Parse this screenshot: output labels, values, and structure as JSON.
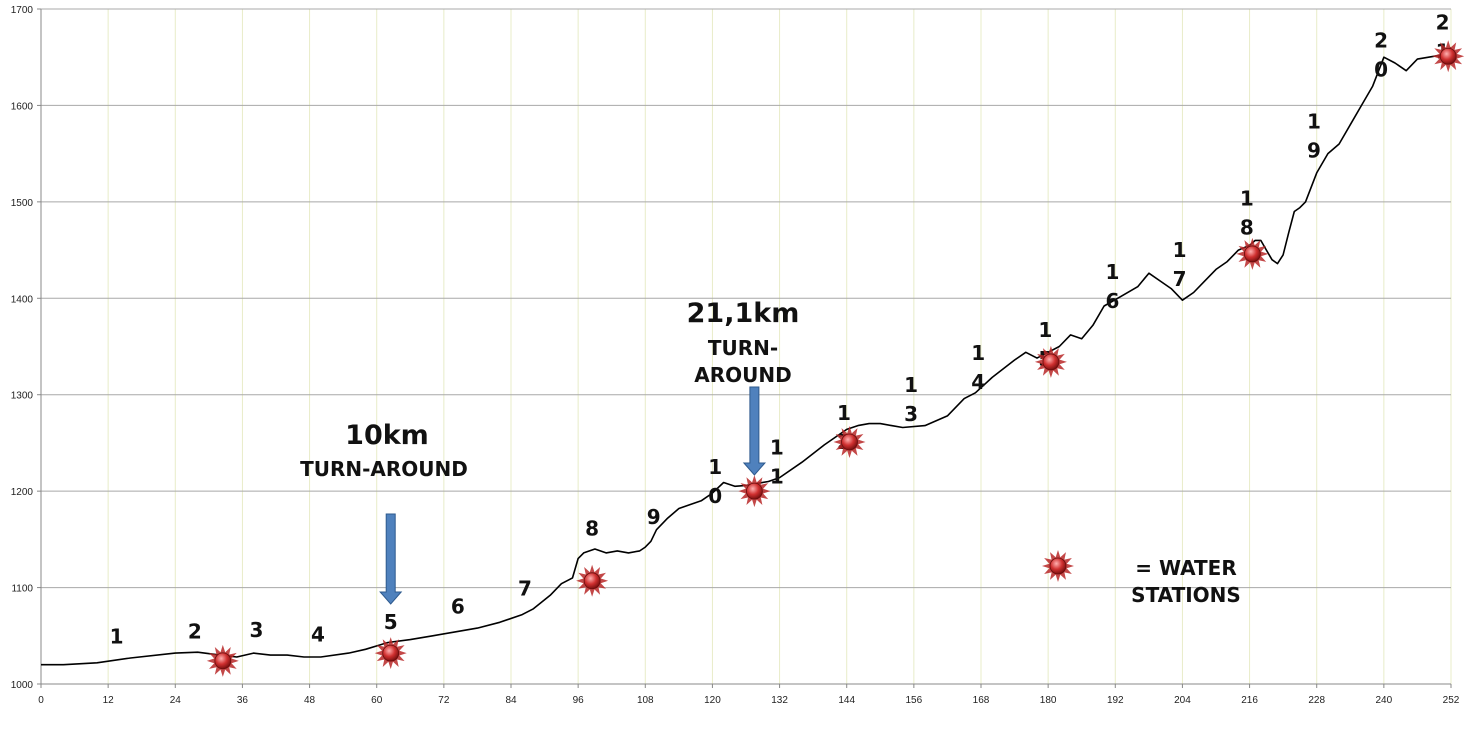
{
  "colors": {
    "background": "#ffffff",
    "grid_horizontal": "#a8a8a8",
    "grid_vertical": "#e8ecc8",
    "line": "#000000",
    "arrow": "#4f81bd",
    "water_station": "#d03030"
  },
  "chart_data": {
    "type": "line",
    "title": "",
    "xlabel": "",
    "ylabel": "",
    "xlim": [
      0,
      252
    ],
    "ylim": [
      1000,
      1700
    ],
    "grid": {
      "horizontal": true,
      "vertical": true
    },
    "x_ticks": [
      "0",
      "12",
      "24",
      "36",
      "48",
      "60",
      "72",
      "84",
      "96",
      "108",
      "120",
      "132",
      "144",
      "156",
      "168",
      "180",
      "192",
      "204",
      "216",
      "228",
      "240",
      "252"
    ],
    "y_ticks": [
      "1000",
      "1100",
      "1200",
      "1300",
      "1400",
      "1500",
      "1600",
      "1700"
    ],
    "series": [
      {
        "x": [
          0,
          4,
          10,
          16,
          24,
          28,
          32,
          35,
          38,
          41,
          44,
          47,
          50,
          55,
          58,
          62,
          66,
          70,
          74,
          78,
          82,
          86,
          88,
          91,
          93,
          95,
          96,
          97,
          99,
          101,
          103,
          105,
          107,
          108,
          109,
          110,
          112,
          114,
          116,
          118,
          120,
          122,
          124,
          126,
          128,
          130,
          132,
          136,
          140,
          144,
          146,
          148,
          150,
          152,
          154,
          158,
          162,
          165,
          167,
          170,
          174,
          176,
          178,
          180,
          182,
          184,
          186,
          188,
          190,
          193,
          196,
          198,
          200,
          202,
          204,
          206,
          208,
          210,
          212,
          214,
          216,
          217,
          218,
          219,
          220,
          221,
          222,
          223,
          224,
          225,
          226,
          228,
          230,
          232,
          234,
          236,
          238,
          240,
          242,
          244,
          246,
          248,
          250,
          252
        ],
        "y": [
          1020,
          1020,
          1022,
          1027,
          1032,
          1033,
          1030,
          1028,
          1032,
          1030,
          1030,
          1028,
          1028,
          1032,
          1036,
          1043,
          1046,
          1050,
          1054,
          1058,
          1064,
          1072,
          1078,
          1092,
          1104,
          1110,
          1130,
          1136,
          1140,
          1136,
          1138,
          1136,
          1138,
          1142,
          1148,
          1160,
          1172,
          1182,
          1186,
          1190,
          1198,
          1209,
          1205,
          1206,
          1208,
          1210,
          1214,
          1230,
          1248,
          1264,
          1268,
          1270,
          1270,
          1268,
          1266,
          1268,
          1278,
          1296,
          1302,
          1318,
          1336,
          1344,
          1338,
          1344,
          1350,
          1362,
          1358,
          1372,
          1392,
          1402,
          1412,
          1426,
          1418,
          1410,
          1398,
          1406,
          1418,
          1430,
          1438,
          1450,
          1455,
          1460,
          1460,
          1450,
          1440,
          1436,
          1445,
          1468,
          1490,
          1494,
          1500,
          1530,
          1550,
          1560,
          1580,
          1600,
          1620,
          1650,
          1644,
          1636,
          1648,
          1650,
          1652,
          1660
        ]
      }
    ],
    "km_markers": [
      {
        "x": 13.5,
        "y": 1042,
        "lines": [
          "1"
        ]
      },
      {
        "x": 27.5,
        "y": 1047,
        "lines": [
          "2"
        ]
      },
      {
        "x": 38.5,
        "y": 1049,
        "lines": [
          "3"
        ]
      },
      {
        "x": 49.5,
        "y": 1044,
        "lines": [
          "4"
        ]
      },
      {
        "x": 62.5,
        "y": 1057,
        "lines": [
          "5"
        ]
      },
      {
        "x": 74.5,
        "y": 1073,
        "lines": [
          "6"
        ]
      },
      {
        "x": 86.5,
        "y": 1092,
        "lines": [
          "7"
        ]
      },
      {
        "x": 98.5,
        "y": 1154,
        "lines": [
          "8"
        ]
      },
      {
        "x": 109.5,
        "y": 1166,
        "lines": [
          "9"
        ]
      },
      {
        "x": 120.5,
        "y": 1218,
        "lines": [
          "1",
          "0"
        ]
      },
      {
        "x": 131.5,
        "y": 1238,
        "lines": [
          "1",
          "1"
        ]
      },
      {
        "x": 143.5,
        "y": 1274,
        "lines": [
          "1",
          "2"
        ]
      },
      {
        "x": 155.5,
        "y": 1303,
        "lines": [
          "1",
          "3"
        ]
      },
      {
        "x": 167.5,
        "y": 1336,
        "lines": [
          "1",
          "4"
        ]
      },
      {
        "x": 179.5,
        "y": 1360,
        "lines": [
          "1",
          "5"
        ]
      },
      {
        "x": 191.5,
        "y": 1420,
        "lines": [
          "1",
          "6"
        ]
      },
      {
        "x": 203.5,
        "y": 1443,
        "lines": [
          "1",
          "7"
        ]
      },
      {
        "x": 215.5,
        "y": 1496,
        "lines": [
          "1",
          "8"
        ]
      },
      {
        "x": 227.5,
        "y": 1576,
        "lines": [
          "1",
          "9"
        ]
      },
      {
        "x": 239.5,
        "y": 1660,
        "lines": [
          "2",
          "0"
        ]
      },
      {
        "x": 250.5,
        "y": 1679,
        "lines": [
          "2",
          "1"
        ]
      }
    ],
    "water_stations": [
      {
        "x": 32.5,
        "y": 1024
      },
      {
        "x": 62.5,
        "y": 1032
      },
      {
        "x": 98.5,
        "y": 1107
      },
      {
        "x": 127.5,
        "y": 1200
      },
      {
        "x": 144.5,
        "y": 1251
      },
      {
        "x": 180.5,
        "y": 1334
      },
      {
        "x": 216.5,
        "y": 1446
      },
      {
        "x": 251.5,
        "y": 1651
      }
    ],
    "annotations": [
      {
        "id": "turn10",
        "line1": "10km",
        "line2": "TURN-AROUND",
        "arrow_x": 62.5
      },
      {
        "id": "turn21",
        "line1": "21,1km",
        "line2": "TURN-",
        "line3": "AROUND",
        "arrow_x": 127.5
      }
    ],
    "legend": {
      "text_line1": "= WATER",
      "text_line2": "STATIONS",
      "placement": "lower-right"
    }
  }
}
